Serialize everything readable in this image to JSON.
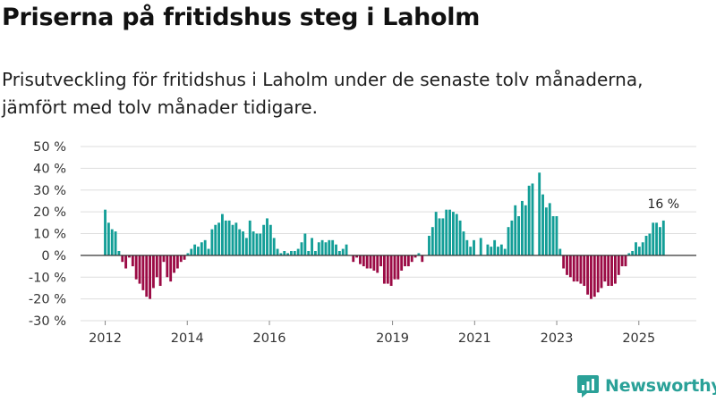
{
  "title": "Priserna på fritidshus steg i Laholm",
  "subtitle": "Prisutveckling för fritidshus i Laholm under de senaste tolv månaderna, jämfört med tolv månader tidigare.",
  "brand": {
    "name": "Newsworthy",
    "icon": "newsworthy-logo-icon",
    "color": "#2aa198"
  },
  "chart_data": {
    "type": "bar",
    "title": "Priserna på fritidshus steg i Laholm",
    "xlabel": "",
    "ylabel": "",
    "y_unit": " %",
    "ylim": [
      -30,
      50
    ],
    "y_ticks": [
      -30,
      -20,
      -10,
      0,
      10,
      20,
      30,
      40,
      50
    ],
    "x_start": 2012.0,
    "x_end": 2025.6,
    "xlim": [
      2011.4,
      2026.4
    ],
    "x_ticks": [
      2012,
      2014,
      2016,
      2019,
      2021,
      2023,
      2025
    ],
    "grid": true,
    "colors": {
      "positive": "#139e97",
      "negative": "#9b0b45",
      "zero_line": "#333333",
      "grid": "#dddddd"
    },
    "values": [
      21,
      15,
      12,
      11,
      2,
      -3,
      -6,
      -1,
      -5,
      -11,
      -13,
      -16,
      -19,
      -20,
      -15,
      -10,
      -14,
      -3,
      -10,
      -12,
      -8,
      -6,
      -3,
      -2,
      1,
      3,
      5,
      4,
      6,
      7,
      3,
      12,
      14,
      15,
      19,
      16,
      16,
      14,
      15,
      12,
      11,
      8,
      16,
      11,
      10,
      10,
      14,
      17,
      14,
      8,
      3,
      1,
      2,
      1,
      2,
      2,
      3,
      6,
      10,
      2,
      8,
      2,
      6,
      7,
      6,
      7,
      7,
      5,
      2,
      3,
      5,
      0,
      -3,
      -1,
      -4,
      -5,
      -6,
      -6,
      -7,
      -8,
      -5,
      -13,
      -13,
      -14,
      -11,
      -11,
      -7,
      -5,
      -5,
      -3,
      -1,
      1,
      -3,
      0,
      9,
      13,
      20,
      17,
      17,
      21,
      21,
      20,
      19,
      16,
      11,
      7,
      4,
      7,
      0,
      8,
      0,
      5,
      4,
      7,
      4,
      5,
      3,
      13,
      16,
      23,
      18,
      25,
      23,
      32,
      33,
      0,
      38,
      28,
      22,
      24,
      18,
      18,
      3,
      -6,
      -9,
      -10,
      -12,
      -12,
      -13,
      -14,
      -18,
      -20,
      -19,
      -17,
      -15,
      -12,
      -14,
      -14,
      -13,
      -9,
      -5,
      -5,
      1,
      2,
      6,
      4,
      6,
      9,
      10,
      15,
      15,
      13,
      16
    ],
    "annotations": [
      {
        "text": "16 %",
        "at": "last-bar"
      }
    ]
  }
}
